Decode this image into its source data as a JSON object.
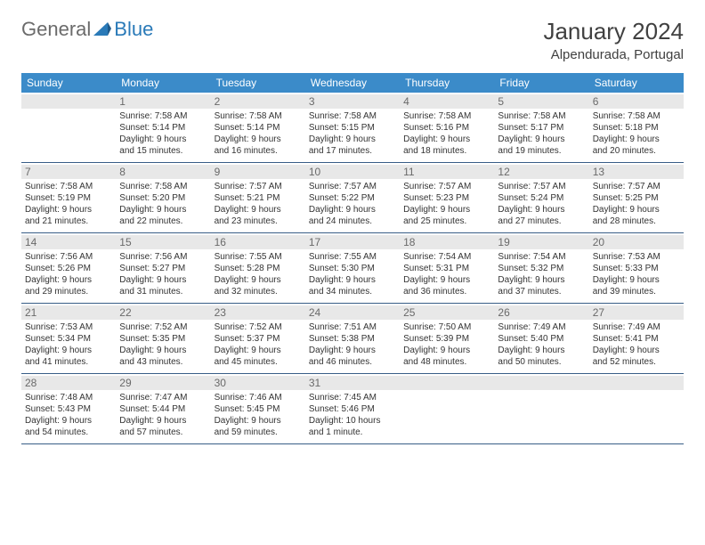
{
  "logo": {
    "general": "General",
    "blue": "Blue"
  },
  "title": "January 2024",
  "location": "Alpendurada, Portugal",
  "colors": {
    "header_bg": "#3b8bc9",
    "header_text": "#ffffff",
    "daynum_bg": "#e8e8e8",
    "border": "#385d87",
    "logo_gray": "#6b6b6b",
    "logo_blue": "#2a7ab8"
  },
  "weekdays": [
    "Sunday",
    "Monday",
    "Tuesday",
    "Wednesday",
    "Thursday",
    "Friday",
    "Saturday"
  ],
  "weeks": [
    [
      {
        "n": "",
        "sr": "",
        "ss": "",
        "d1": "",
        "d2": ""
      },
      {
        "n": "1",
        "sr": "Sunrise: 7:58 AM",
        "ss": "Sunset: 5:14 PM",
        "d1": "Daylight: 9 hours",
        "d2": "and 15 minutes."
      },
      {
        "n": "2",
        "sr": "Sunrise: 7:58 AM",
        "ss": "Sunset: 5:14 PM",
        "d1": "Daylight: 9 hours",
        "d2": "and 16 minutes."
      },
      {
        "n": "3",
        "sr": "Sunrise: 7:58 AM",
        "ss": "Sunset: 5:15 PM",
        "d1": "Daylight: 9 hours",
        "d2": "and 17 minutes."
      },
      {
        "n": "4",
        "sr": "Sunrise: 7:58 AM",
        "ss": "Sunset: 5:16 PM",
        "d1": "Daylight: 9 hours",
        "d2": "and 18 minutes."
      },
      {
        "n": "5",
        "sr": "Sunrise: 7:58 AM",
        "ss": "Sunset: 5:17 PM",
        "d1": "Daylight: 9 hours",
        "d2": "and 19 minutes."
      },
      {
        "n": "6",
        "sr": "Sunrise: 7:58 AM",
        "ss": "Sunset: 5:18 PM",
        "d1": "Daylight: 9 hours",
        "d2": "and 20 minutes."
      }
    ],
    [
      {
        "n": "7",
        "sr": "Sunrise: 7:58 AM",
        "ss": "Sunset: 5:19 PM",
        "d1": "Daylight: 9 hours",
        "d2": "and 21 minutes."
      },
      {
        "n": "8",
        "sr": "Sunrise: 7:58 AM",
        "ss": "Sunset: 5:20 PM",
        "d1": "Daylight: 9 hours",
        "d2": "and 22 minutes."
      },
      {
        "n": "9",
        "sr": "Sunrise: 7:57 AM",
        "ss": "Sunset: 5:21 PM",
        "d1": "Daylight: 9 hours",
        "d2": "and 23 minutes."
      },
      {
        "n": "10",
        "sr": "Sunrise: 7:57 AM",
        "ss": "Sunset: 5:22 PM",
        "d1": "Daylight: 9 hours",
        "d2": "and 24 minutes."
      },
      {
        "n": "11",
        "sr": "Sunrise: 7:57 AM",
        "ss": "Sunset: 5:23 PM",
        "d1": "Daylight: 9 hours",
        "d2": "and 25 minutes."
      },
      {
        "n": "12",
        "sr": "Sunrise: 7:57 AM",
        "ss": "Sunset: 5:24 PM",
        "d1": "Daylight: 9 hours",
        "d2": "and 27 minutes."
      },
      {
        "n": "13",
        "sr": "Sunrise: 7:57 AM",
        "ss": "Sunset: 5:25 PM",
        "d1": "Daylight: 9 hours",
        "d2": "and 28 minutes."
      }
    ],
    [
      {
        "n": "14",
        "sr": "Sunrise: 7:56 AM",
        "ss": "Sunset: 5:26 PM",
        "d1": "Daylight: 9 hours",
        "d2": "and 29 minutes."
      },
      {
        "n": "15",
        "sr": "Sunrise: 7:56 AM",
        "ss": "Sunset: 5:27 PM",
        "d1": "Daylight: 9 hours",
        "d2": "and 31 minutes."
      },
      {
        "n": "16",
        "sr": "Sunrise: 7:55 AM",
        "ss": "Sunset: 5:28 PM",
        "d1": "Daylight: 9 hours",
        "d2": "and 32 minutes."
      },
      {
        "n": "17",
        "sr": "Sunrise: 7:55 AM",
        "ss": "Sunset: 5:30 PM",
        "d1": "Daylight: 9 hours",
        "d2": "and 34 minutes."
      },
      {
        "n": "18",
        "sr": "Sunrise: 7:54 AM",
        "ss": "Sunset: 5:31 PM",
        "d1": "Daylight: 9 hours",
        "d2": "and 36 minutes."
      },
      {
        "n": "19",
        "sr": "Sunrise: 7:54 AM",
        "ss": "Sunset: 5:32 PM",
        "d1": "Daylight: 9 hours",
        "d2": "and 37 minutes."
      },
      {
        "n": "20",
        "sr": "Sunrise: 7:53 AM",
        "ss": "Sunset: 5:33 PM",
        "d1": "Daylight: 9 hours",
        "d2": "and 39 minutes."
      }
    ],
    [
      {
        "n": "21",
        "sr": "Sunrise: 7:53 AM",
        "ss": "Sunset: 5:34 PM",
        "d1": "Daylight: 9 hours",
        "d2": "and 41 minutes."
      },
      {
        "n": "22",
        "sr": "Sunrise: 7:52 AM",
        "ss": "Sunset: 5:35 PM",
        "d1": "Daylight: 9 hours",
        "d2": "and 43 minutes."
      },
      {
        "n": "23",
        "sr": "Sunrise: 7:52 AM",
        "ss": "Sunset: 5:37 PM",
        "d1": "Daylight: 9 hours",
        "d2": "and 45 minutes."
      },
      {
        "n": "24",
        "sr": "Sunrise: 7:51 AM",
        "ss": "Sunset: 5:38 PM",
        "d1": "Daylight: 9 hours",
        "d2": "and 46 minutes."
      },
      {
        "n": "25",
        "sr": "Sunrise: 7:50 AM",
        "ss": "Sunset: 5:39 PM",
        "d1": "Daylight: 9 hours",
        "d2": "and 48 minutes."
      },
      {
        "n": "26",
        "sr": "Sunrise: 7:49 AM",
        "ss": "Sunset: 5:40 PM",
        "d1": "Daylight: 9 hours",
        "d2": "and 50 minutes."
      },
      {
        "n": "27",
        "sr": "Sunrise: 7:49 AM",
        "ss": "Sunset: 5:41 PM",
        "d1": "Daylight: 9 hours",
        "d2": "and 52 minutes."
      }
    ],
    [
      {
        "n": "28",
        "sr": "Sunrise: 7:48 AM",
        "ss": "Sunset: 5:43 PM",
        "d1": "Daylight: 9 hours",
        "d2": "and 54 minutes."
      },
      {
        "n": "29",
        "sr": "Sunrise: 7:47 AM",
        "ss": "Sunset: 5:44 PM",
        "d1": "Daylight: 9 hours",
        "d2": "and 57 minutes."
      },
      {
        "n": "30",
        "sr": "Sunrise: 7:46 AM",
        "ss": "Sunset: 5:45 PM",
        "d1": "Daylight: 9 hours",
        "d2": "and 59 minutes."
      },
      {
        "n": "31",
        "sr": "Sunrise: 7:45 AM",
        "ss": "Sunset: 5:46 PM",
        "d1": "Daylight: 10 hours",
        "d2": "and 1 minute."
      },
      {
        "n": "",
        "sr": "",
        "ss": "",
        "d1": "",
        "d2": ""
      },
      {
        "n": "",
        "sr": "",
        "ss": "",
        "d1": "",
        "d2": ""
      },
      {
        "n": "",
        "sr": "",
        "ss": "",
        "d1": "",
        "d2": ""
      }
    ]
  ]
}
